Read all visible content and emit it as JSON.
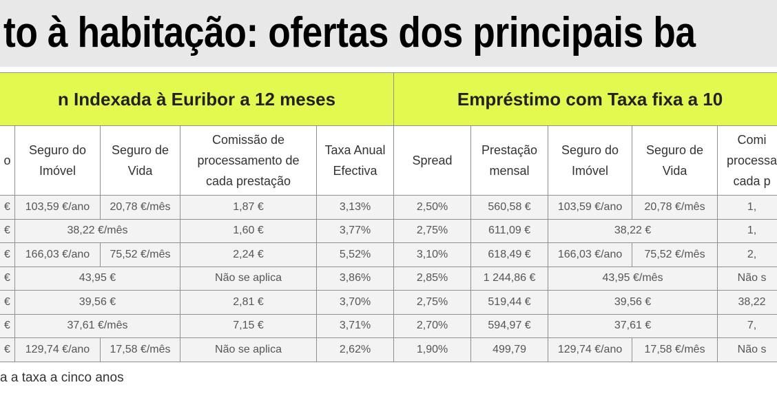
{
  "header": {
    "title": "to à habitação: ofertas dos principais ba"
  },
  "table": {
    "groups": [
      "n Indexada à Euribor a 12 meses",
      "Empréstimo com Taxa fixa a 10"
    ],
    "columns": [
      "o",
      "Seguro do\nImóvel",
      "Seguro de\nVida",
      "Comissão de\nprocessamento de\ncada prestação",
      "Taxa Anual\nEfectiva",
      "Spread",
      "Prestação\nmensal",
      "Seguro do\nImóvel",
      "Seguro de\nVida",
      "Comi\nprocessa\ncada p"
    ],
    "rows": [
      [
        "€",
        "103,59 €/ano",
        "20,78 €/mês",
        "1,87 €",
        "3,13%",
        "2,50%",
        "560,58 €",
        "103,59 €/ano",
        "20,78 €/mês",
        "1,"
      ],
      [
        "€",
        "38,22 €/mês",
        "1,60 €",
        "3,77%",
        "2,75%",
        "611,09 €",
        "38,22 €",
        "1,"
      ],
      [
        "€",
        "166,03 €/ano",
        "75,52 €/mês",
        "2,24 €",
        "5,52%",
        "3,10%",
        "618,49 €",
        "166,03 €/ano",
        "75,52 €/mês",
        "2,"
      ],
      [
        "€",
        "43,95 €",
        "Não se aplica",
        "3,86%",
        "2,85%",
        "1 244,86 €",
        "43,95 €/mês",
        "Não s"
      ],
      [
        "€",
        "39,56 €",
        "2,81 €",
        "3,70%",
        "2,75%",
        "519,44 €",
        "39,56 €",
        "38,22"
      ],
      [
        "€",
        "37,61 €/mês",
        "7,15 €",
        "3,71%",
        "2,70%",
        "594,97 €",
        "37,61 €",
        "7,"
      ],
      [
        "€",
        "129,74 €/ano",
        "17,58 €/mês",
        "Não se aplica",
        "2,62%",
        "1,90%",
        "499,79",
        "129,74 €/ano",
        "17,58 €/mês",
        "Não s"
      ]
    ]
  },
  "footnote": "a a taxa a cinco anos"
}
